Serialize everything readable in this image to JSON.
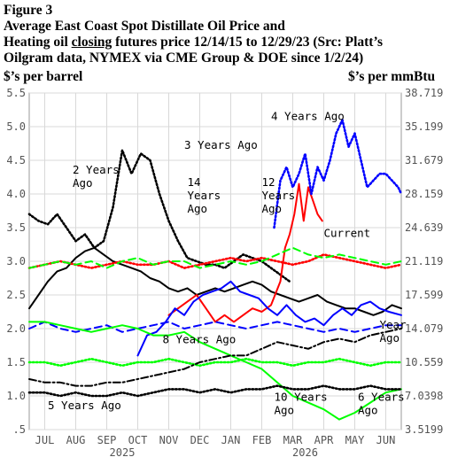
{
  "header": {
    "line1": "Figure 3",
    "line2": "Average East Coast Spot Distillate Oil Price and",
    "line3_a": " Heating oil ",
    "line3_b": "closing",
    "line3_c": " futures price 12/14/15 to 12/29/23 (Src: Platt’s",
    "line4": " Oilgram data, NYMEX via CME Group & DOE since 1/2/24)"
  },
  "chart_data": {
    "type": "line",
    "title": "Figure 3 Average East Coast Spot Distillate Oil Price and Heating oil closing futures price 12/14/15 to 12/29/23 (Src: Platt’s Oilgram data, NYMEX via CME Group & DOE since 1/2/24)",
    "ylabel_left": "$’s per barrel",
    "ylabel_right": "$’s per mmBtu",
    "ylim": [
      0.5,
      5.5
    ],
    "yticks_left": [
      "5.5",
      "5.0",
      "4.5",
      "4.0",
      "3.5",
      "3.0",
      "2.5",
      "2.0",
      "1.5",
      "1.0",
      ".5"
    ],
    "yticks_right": [
      "38.719",
      "35.199",
      "31.679",
      "28.159",
      "24.639",
      "21.119",
      "17.599",
      "14.079",
      "10.559",
      "7.0398",
      "3.5199"
    ],
    "x_months": [
      "JUL",
      "AUG",
      "SEP",
      "OCT",
      "NOV",
      "DEC",
      "JAN",
      "FEB",
      "MAR",
      "APR",
      "MAY",
      "JUN"
    ],
    "x_years": [
      "2025",
      "2026"
    ],
    "grid": true,
    "series": [
      {
        "color": "#000000",
        "style": "solid",
        "x": [
          0,
          0.3,
          0.6,
          0.9,
          1.2,
          1.5,
          1.8,
          2.1,
          2.4,
          2.7,
          3.0,
          3.3,
          3.6,
          3.9,
          4.2,
          4.5,
          4.8,
          5.1,
          5.4,
          5.7,
          6.0,
          6.3,
          6.6,
          6.9,
          7.2,
          7.5,
          7.8,
          8.1,
          8.4,
          8.7,
          9.0,
          9.3,
          9.6,
          9.9,
          10.2,
          10.5,
          10.8,
          11.1,
          11.4,
          11.7,
          12.0
        ],
        "y": [
          2.3,
          2.5,
          2.7,
          2.85,
          2.9,
          3.05,
          3.15,
          3.2,
          3.1,
          3.0,
          2.95,
          2.9,
          2.85,
          2.75,
          2.7,
          2.6,
          2.55,
          2.6,
          2.5,
          2.55,
          2.6,
          2.55,
          2.6,
          2.65,
          2.7,
          2.65,
          2.55,
          2.5,
          2.45,
          2.4,
          2.45,
          2.5,
          2.4,
          2.35,
          2.3,
          2.3,
          2.25,
          2.2,
          2.25,
          2.35,
          2.3
        ]
      },
      {
        "color": "#000000",
        "style": "dotted",
        "x": [
          0,
          0.3,
          0.6,
          0.9,
          1.2,
          1.5,
          1.8,
          2.1,
          2.4,
          2.7,
          3.0,
          3.3,
          3.6,
          3.9,
          4.2,
          4.5,
          4.8,
          5.1,
          5.4,
          5.7,
          6.0,
          6.3,
          6.6,
          6.9,
          7.2,
          7.5,
          7.8,
          8.1,
          8.4
        ],
        "y": [
          3.7,
          3.6,
          3.55,
          3.7,
          3.5,
          3.3,
          3.4,
          3.2,
          3.3,
          3.8,
          4.65,
          4.3,
          4.6,
          4.5,
          4.0,
          3.6,
          3.3,
          3.05,
          3.0,
          2.95,
          2.95,
          2.9,
          3.0,
          3.1,
          3.05,
          3.0,
          2.9,
          2.8,
          2.7
        ]
      },
      {
        "color": "#ff0000",
        "style": "solid",
        "x": [
          4.5,
          4.8,
          5.1,
          5.4,
          5.7,
          6.0,
          6.3,
          6.6,
          6.9,
          7.2,
          7.5,
          7.8,
          8.1,
          8.25,
          8.4,
          8.55,
          8.7,
          8.85,
          9.0,
          9.15,
          9.3,
          9.45
        ],
        "y": [
          2.2,
          2.3,
          2.4,
          2.5,
          2.3,
          2.1,
          2.2,
          2.1,
          2.2,
          2.3,
          2.25,
          2.35,
          2.7,
          3.2,
          3.4,
          3.7,
          4.15,
          3.6,
          4.1,
          3.9,
          3.7,
          3.6
        ]
      },
      {
        "color": "#ff0000",
        "style": "dotted",
        "x": [
          0,
          0.5,
          1.0,
          1.5,
          2.0,
          2.5,
          3.0,
          3.5,
          4.0,
          4.5,
          5.0,
          5.5,
          6.0,
          6.5,
          7.0,
          7.5,
          8.0,
          8.5,
          9.0,
          9.5,
          10.0,
          10.5,
          11.0,
          11.5,
          12.0
        ],
        "y": [
          2.9,
          2.95,
          3.0,
          2.95,
          2.9,
          2.95,
          3.0,
          2.95,
          2.95,
          3.0,
          2.9,
          2.95,
          3.0,
          3.05,
          3.0,
          3.05,
          3.0,
          2.95,
          3.0,
          3.1,
          3.05,
          3.0,
          2.95,
          2.9,
          2.95
        ]
      },
      {
        "color": "#0000ff",
        "style": "solid",
        "x": [
          3.5,
          3.8,
          4.1,
          4.4,
          4.7,
          5.0,
          5.3,
          5.6,
          5.9,
          6.2,
          6.5,
          6.8,
          7.1,
          7.4,
          7.7,
          8.0,
          8.3,
          8.6,
          8.9,
          9.2,
          9.5,
          9.8,
          10.1,
          10.4,
          10.7,
          11.0,
          11.3,
          11.6,
          12.0
        ],
        "y": [
          1.6,
          1.9,
          1.95,
          2.1,
          2.3,
          2.2,
          2.4,
          2.5,
          2.55,
          2.6,
          2.7,
          2.55,
          2.5,
          2.45,
          2.3,
          2.2,
          2.35,
          2.2,
          2.1,
          2.15,
          2.05,
          2.2,
          2.3,
          2.2,
          2.35,
          2.4,
          2.3,
          2.25,
          2.2
        ]
      },
      {
        "color": "#0000ff",
        "style": "dashed",
        "x": [
          0,
          0.5,
          1.0,
          1.5,
          2.0,
          2.5,
          3.0,
          3.5,
          4.0,
          4.5,
          5.0,
          5.5,
          6.0,
          6.5,
          7.0,
          7.5,
          8.0,
          8.5,
          9.0,
          9.5,
          10.0,
          10.5,
          11.0,
          11.5,
          12.0
        ],
        "y": [
          2.0,
          2.1,
          2.0,
          1.95,
          2.0,
          2.05,
          1.95,
          2.0,
          2.05,
          2.1,
          2.0,
          2.05,
          2.1,
          2.05,
          2.0,
          2.05,
          2.1,
          2.05,
          2.0,
          1.95,
          2.0,
          1.95,
          2.0,
          2.05,
          2.05
        ]
      },
      {
        "color": "#0000ff",
        "style": "dotted",
        "x": [
          7.9,
          8.1,
          8.3,
          8.5,
          8.7,
          8.9,
          9.1,
          9.3,
          9.5,
          9.7,
          9.9,
          10.1,
          10.3,
          10.5,
          10.7,
          10.9,
          11.1,
          11.3,
          11.5,
          11.7,
          11.9,
          12.0
        ],
        "y": [
          3.5,
          4.2,
          4.4,
          4.1,
          4.3,
          4.6,
          4.0,
          4.4,
          4.2,
          4.5,
          4.9,
          5.1,
          4.7,
          4.9,
          4.5,
          4.1,
          4.2,
          4.3,
          4.3,
          4.2,
          4.1,
          4.0
        ]
      },
      {
        "color": "#00ff00",
        "style": "solid",
        "x": [
          0,
          0.5,
          1.0,
          1.5,
          2.0,
          2.5,
          3.0,
          3.5,
          4.0,
          4.5,
          5.0,
          5.5,
          6.0,
          6.5,
          7.0,
          7.5,
          8.0,
          8.5,
          9.0,
          9.5,
          10.0,
          10.5,
          11.0,
          11.5,
          12.0
        ],
        "y": [
          2.1,
          2.1,
          2.05,
          2.0,
          1.95,
          2.0,
          2.05,
          2.0,
          1.9,
          1.9,
          1.95,
          1.8,
          1.7,
          1.6,
          1.5,
          1.4,
          1.2,
          1.0,
          0.9,
          0.8,
          0.65,
          0.75,
          0.9,
          1.05,
          1.1
        ]
      },
      {
        "color": "#00ff00",
        "style": "dashed",
        "x": [
          0,
          0.5,
          1.0,
          1.5,
          2.0,
          2.5,
          3.0,
          3.5,
          4.0,
          4.5,
          5.0,
          5.5,
          6.0,
          6.5,
          7.0,
          7.5,
          8.0,
          8.5,
          9.0,
          9.5,
          10.0,
          10.5,
          11.0,
          11.5,
          12.0
        ],
        "y": [
          2.9,
          2.95,
          3.0,
          2.95,
          3.0,
          2.9,
          3.0,
          3.05,
          2.95,
          3.0,
          3.0,
          2.9,
          2.95,
          3.0,
          2.95,
          3.0,
          3.1,
          3.2,
          3.1,
          3.05,
          3.1,
          3.05,
          3.0,
          2.95,
          3.0
        ]
      },
      {
        "color": "#00ff00",
        "style": "dotted",
        "x": [
          0,
          0.5,
          1.0,
          1.5,
          2.0,
          2.5,
          3.0,
          3.5,
          4.0,
          4.5,
          5.0,
          5.5,
          6.0,
          6.5,
          7.0,
          7.5,
          8.0,
          8.5,
          9.0,
          9.5,
          10.0,
          10.5,
          11.0,
          11.5,
          12.0
        ],
        "y": [
          1.5,
          1.5,
          1.45,
          1.5,
          1.55,
          1.5,
          1.45,
          1.5,
          1.5,
          1.55,
          1.5,
          1.45,
          1.5,
          1.5,
          1.55,
          1.5,
          1.5,
          1.45,
          1.5,
          1.5,
          1.55,
          1.5,
          1.45,
          1.5,
          1.5
        ]
      },
      {
        "color": "#000000",
        "style": "dashdot",
        "x": [
          0,
          0.5,
          1.0,
          1.5,
          2.0,
          2.5,
          3.0,
          3.5,
          4.0,
          4.5,
          5.0,
          5.5,
          6.0,
          6.5,
          7.0,
          7.5,
          8.0,
          8.5,
          9.0,
          9.5,
          10.0,
          10.5,
          11.0,
          11.5,
          12.0
        ],
        "y": [
          1.25,
          1.2,
          1.2,
          1.15,
          1.15,
          1.2,
          1.2,
          1.25,
          1.3,
          1.35,
          1.4,
          1.5,
          1.55,
          1.6,
          1.6,
          1.7,
          1.8,
          1.75,
          1.7,
          1.8,
          1.85,
          1.8,
          1.9,
          1.95,
          2.0
        ]
      },
      {
        "color": "#000000",
        "style": "dotted",
        "x": [
          0,
          0.5,
          1.0,
          1.5,
          2.0,
          2.5,
          3.0,
          3.5,
          4.0,
          4.5,
          5.0,
          5.5,
          6.0,
          6.5,
          7.0,
          7.5,
          8.0,
          8.5,
          9.0,
          9.5,
          10.0,
          10.5,
          11.0,
          11.5,
          12.0
        ],
        "y": [
          1.05,
          1.05,
          1.0,
          1.05,
          1.0,
          1.0,
          1.05,
          1.0,
          1.05,
          1.1,
          1.1,
          1.05,
          1.1,
          1.05,
          1.1,
          1.1,
          1.15,
          1.1,
          1.1,
          1.15,
          1.1,
          1.1,
          1.15,
          1.1,
          1.1
        ]
      }
    ],
    "annotations": [
      {
        "lines": [
          "4 Years Ago"
        ],
        "x": 7.8,
        "y": 5.1
      },
      {
        "lines": [
          "3 Years Ago"
        ],
        "x": 5.0,
        "y": 4.67
      },
      {
        "lines": [
          "2 Years",
          "Ago"
        ],
        "x": 1.4,
        "y": 4.3
      },
      {
        "lines": [
          "14",
          "Years",
          "Ago"
        ],
        "x": 5.1,
        "y": 4.12
      },
      {
        "lines": [
          "12",
          "Years",
          "Ago"
        ],
        "x": 7.5,
        "y": 4.12
      },
      {
        "lines": [
          "Current"
        ],
        "x": 9.5,
        "y": 3.36
      },
      {
        "lines": [
          "8 Years Ago"
        ],
        "x": 4.3,
        "y": 1.78
      },
      {
        "lines": [
          "Year",
          "Ago"
        ],
        "x": 11.3,
        "y": 2.0
      },
      {
        "lines": [
          "10 Years",
          "Ago"
        ],
        "x": 7.9,
        "y": 0.93
      },
      {
        "lines": [
          "6 Years",
          "Ago"
        ],
        "x": 10.6,
        "y": 0.93
      },
      {
        "lines": [
          "5 Years Ago"
        ],
        "x": 0.6,
        "y": 0.8
      }
    ]
  }
}
